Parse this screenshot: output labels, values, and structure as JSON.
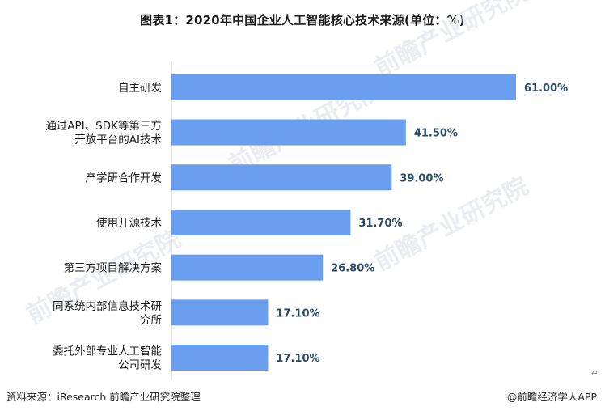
{
  "title": "图表1：2020年中国企业人工智能核心技术来源(单位：%)",
  "source": "资料来源：iResearch 前瞻产业研究院整理",
  "brand": "@前瞻经济学人APP",
  "watermark": "前瞻产业研究院",
  "return_mark": "↵",
  "colors": {
    "bar": "#6a9ff0",
    "value_text": "#2a4a66"
  },
  "chart_data": {
    "type": "bar",
    "orientation": "horizontal",
    "title": "图表1：2020年中国企业人工智能核心技术来源(单位：%)",
    "xlabel": "",
    "ylabel": "",
    "grid": false,
    "categories": [
      [
        "自主研发"
      ],
      [
        "通过API、SDK等第三方",
        "开放平台的AI技术"
      ],
      [
        "产学研合作开发"
      ],
      [
        "使用开源技术"
      ],
      [
        "第三方项目解决方案"
      ],
      [
        "同系统内部信息技术研",
        "究所"
      ],
      [
        "委托外部专业人工智能",
        "公司研发"
      ]
    ],
    "values": [
      61.0,
      41.5,
      39.0,
      31.7,
      26.8,
      17.1,
      17.1
    ],
    "value_labels": [
      "61.00%",
      "41.50%",
      "39.00%",
      "31.70%",
      "26.80%",
      "17.10%",
      "17.10%"
    ],
    "xlim": [
      0,
      61
    ]
  }
}
